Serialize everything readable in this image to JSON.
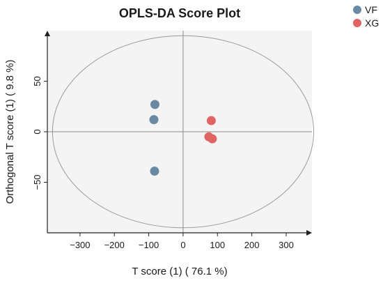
{
  "chart_data": {
    "type": "scatter",
    "title": "OPLS-DA Score Plot",
    "xlabel": "T score (1) ( 76.1 %)",
    "ylabel": "Orthogonal T score (1) ( 9.8 %)",
    "xlim": [
      -395,
      375
    ],
    "ylim": [
      -100,
      100
    ],
    "xticks": [
      -300,
      -200,
      -100,
      0,
      100,
      200,
      300
    ],
    "yticks": [
      -50,
      0,
      50
    ],
    "grid": false,
    "legend_position": "top-right",
    "ellipse": {
      "center": [
        0,
        0
      ],
      "rx": 380,
      "ry": 95
    },
    "series": [
      {
        "name": "VF",
        "color": "#6a8aa3",
        "points": [
          [
            -82,
            27
          ],
          [
            -85,
            12
          ],
          [
            -83,
            -39
          ]
        ]
      },
      {
        "name": "XG",
        "color": "#e06464",
        "points": [
          [
            82,
            11
          ],
          [
            75,
            -5
          ],
          [
            85,
            -7
          ]
        ]
      }
    ]
  }
}
